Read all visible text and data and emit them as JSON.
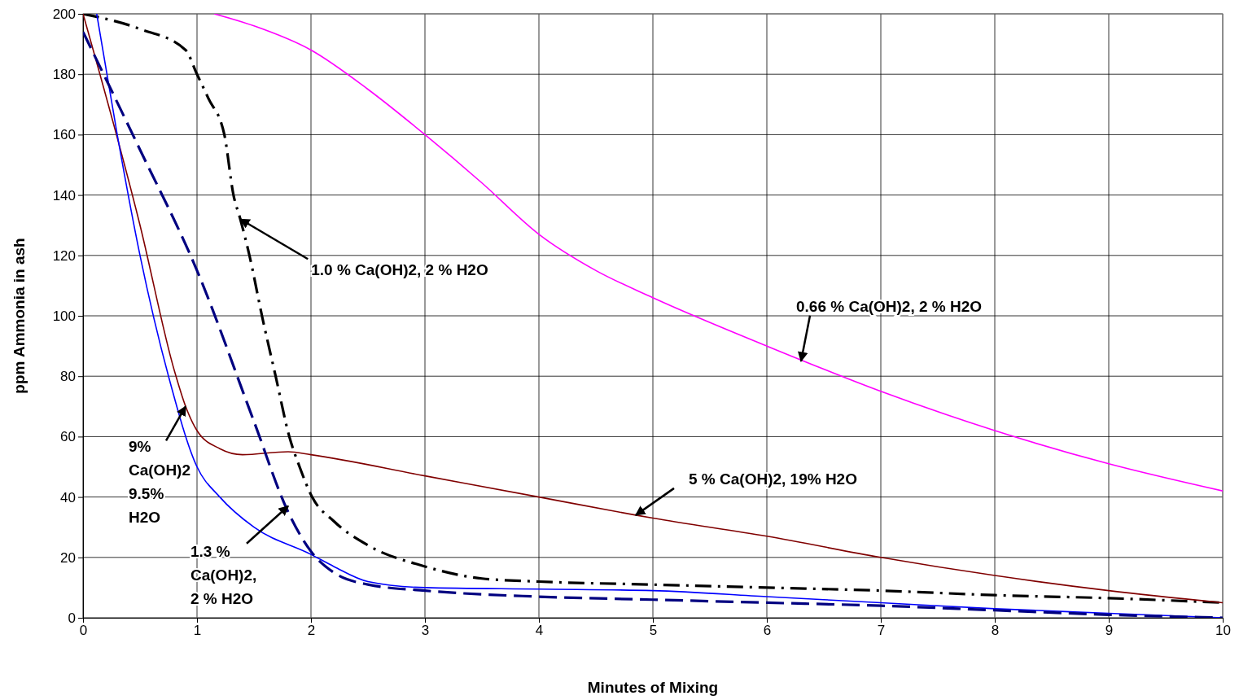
{
  "chart_data": {
    "type": "line",
    "xlabel": "Minutes of Mixing",
    "ylabel": "ppm Ammonia in ash",
    "xlim": [
      0,
      10
    ],
    "xticks": [
      0,
      1,
      2,
      3,
      4,
      5,
      6,
      7,
      8,
      9,
      10
    ],
    "ylim": [
      0,
      200
    ],
    "yticks": [
      0,
      20,
      40,
      60,
      80,
      100,
      120,
      140,
      160,
      180,
      200
    ],
    "grid": true,
    "series": [
      {
        "color": "#ff00ff",
        "line_style": "solid",
        "x": [
          1.15,
          1.5,
          2,
          2.5,
          3,
          3.5,
          4,
          4.5,
          5,
          6,
          7,
          8,
          9,
          10
        ],
        "values": [
          200,
          196,
          188,
          175,
          160,
          144,
          127,
          115,
          106,
          90,
          75,
          62,
          51,
          42
        ]
      },
      {
        "color": "#000000",
        "line_style": "dashdot",
        "x": [
          0,
          0.5,
          0.9,
          1,
          1.1,
          1.24,
          1.32,
          1.38,
          1.46,
          1.57,
          1.69,
          1.81,
          1.9,
          2.01,
          2.2,
          2.5,
          3,
          3.5,
          4,
          5,
          6,
          7,
          8,
          9,
          10
        ],
        "values": [
          200,
          195,
          188,
          180,
          172,
          160,
          140,
          132,
          120,
          100,
          80,
          60,
          50,
          40,
          32,
          24,
          17,
          13,
          12,
          11,
          10,
          9,
          7.5,
          6.5,
          5
        ]
      },
      {
        "color": "#800000",
        "line_style": "solid",
        "x": [
          0,
          0.5,
          0.8,
          0.9,
          1,
          1.2,
          1.4,
          1.8,
          2,
          3,
          4,
          4.85,
          5,
          6,
          7,
          8,
          9,
          10
        ],
        "values": [
          200,
          130,
          82,
          70,
          62,
          56,
          54,
          55,
          54,
          47,
          40,
          34,
          33,
          27,
          20,
          14,
          9,
          5
        ]
      },
      {
        "color": "#0000ff",
        "line_style": "solid",
        "x": [
          0.12,
          0.3,
          0.5,
          0.75,
          1,
          1.2,
          1.5,
          2,
          2.2,
          2.5,
          3,
          4,
          5,
          6,
          7,
          8,
          9,
          10
        ],
        "values": [
          200,
          160,
          120,
          80,
          50,
          40,
          30,
          21,
          17,
          12,
          10,
          9.5,
          9,
          7,
          5,
          3,
          1.5,
          0
        ]
      },
      {
        "color": "#000080",
        "line_style": "dashed",
        "x": [
          0,
          0.5,
          1,
          1.5,
          1.8,
          2,
          2.2,
          2.5,
          3,
          4,
          5,
          6,
          7,
          8,
          9,
          10
        ],
        "values": [
          194,
          155,
          115,
          65,
          35,
          22,
          15,
          11,
          9,
          7,
          6,
          5,
          4,
          2.5,
          1,
          0
        ]
      }
    ],
    "annotations": [
      {
        "text": "1.0 % Ca(OH)2, 2 % H2O",
        "x": 1.38,
        "y": 132
      },
      {
        "text": "0.66 % Ca(OH)2, 2 % H2O",
        "x": 6.3,
        "y": 85
      },
      {
        "text": "5 % Ca(OH)2, 19% H2O",
        "x": 4.85,
        "y": 34
      },
      {
        "text": "9%\nCa(OH)2\n9.5%\nH2O",
        "x": 0.9,
        "y": 70
      },
      {
        "text": "1.3 %\nCa(OH)2,\n2 % H2O",
        "x": 1.8,
        "y": 37
      }
    ]
  }
}
